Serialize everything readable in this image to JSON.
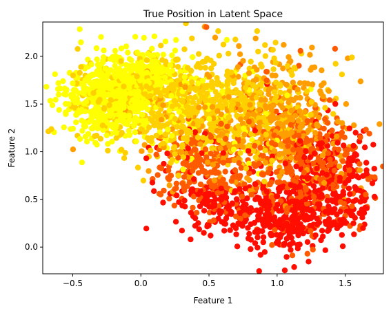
{
  "chart_data": {
    "type": "scatter",
    "title": "True Position in Latent Space",
    "xlabel": "Feature 1",
    "ylabel": "Feature 2",
    "xlim": [
      -0.72,
      1.78
    ],
    "ylim": [
      -0.28,
      2.36
    ],
    "xticks": [
      -0.5,
      0.0,
      0.5,
      1.0,
      1.5
    ],
    "xtick_labels": [
      "−0.5",
      "0.0",
      "0.5",
      "1.0",
      "1.5"
    ],
    "yticks": [
      0.0,
      0.5,
      1.0,
      1.5,
      2.0
    ],
    "ytick_labels": [
      "0.0",
      "0.5",
      "1.0",
      "1.5",
      "2.0"
    ],
    "grid": false,
    "colormap": "hot",
    "colors": [
      "#ff0d00",
      "#ff5a00",
      "#ff9e00",
      "#ffd000",
      "#ffff00"
    ],
    "clusters": [
      {
        "cx": -0.22,
        "cy": 1.55,
        "sx": 0.18,
        "sy": 0.22,
        "n": 620,
        "color_index": 4
      },
      {
        "cx": 0.05,
        "cy": 1.8,
        "sx": 0.15,
        "sy": 0.15,
        "n": 200,
        "color_index": 4
      },
      {
        "cx": 0.25,
        "cy": 1.45,
        "sx": 0.22,
        "sy": 0.25,
        "n": 380,
        "color_index": 3
      },
      {
        "cx": 0.65,
        "cy": 1.45,
        "sx": 0.25,
        "sy": 0.3,
        "n": 420,
        "color_index": 3
      },
      {
        "cx": 1.0,
        "cy": 1.35,
        "sx": 0.22,
        "sy": 0.3,
        "n": 380,
        "color_index": 2
      },
      {
        "cx": 0.45,
        "cy": 0.85,
        "sx": 0.2,
        "sy": 0.2,
        "n": 240,
        "color_index": 1
      },
      {
        "cx": 1.2,
        "cy": 0.95,
        "sx": 0.22,
        "sy": 0.25,
        "n": 380,
        "color_index": 1
      },
      {
        "cx": 1.1,
        "cy": 0.35,
        "sx": 0.22,
        "sy": 0.2,
        "n": 420,
        "color_index": 0
      },
      {
        "cx": 0.55,
        "cy": 0.45,
        "sx": 0.15,
        "sy": 0.15,
        "n": 140,
        "color_index": 0
      },
      {
        "cx": 1.45,
        "cy": 0.7,
        "sx": 0.15,
        "sy": 0.25,
        "n": 160,
        "color_index": 0
      }
    ]
  }
}
